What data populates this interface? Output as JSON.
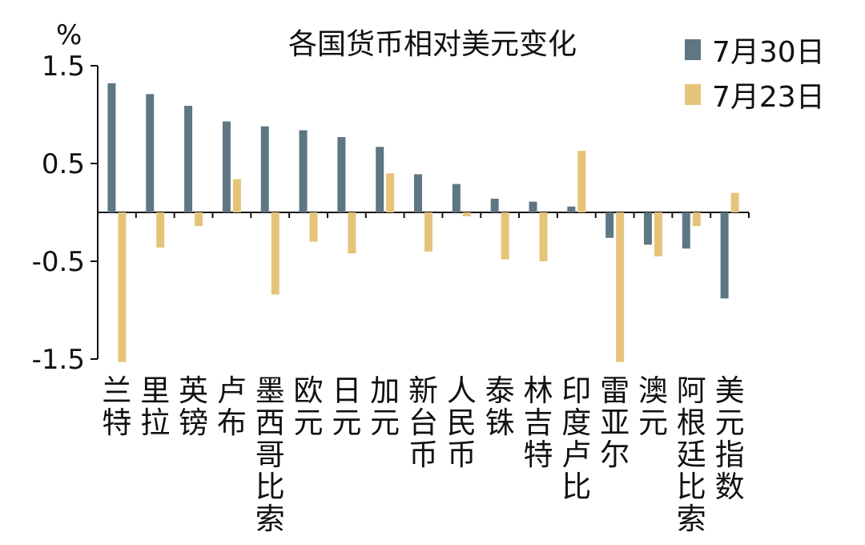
{
  "chart_data": {
    "type": "bar",
    "title": "各国货币相对美元变化",
    "ylabel": "%",
    "ylim": [
      -1.5,
      1.5
    ],
    "yticks": [
      1.5,
      0.5,
      -0.5,
      -1.5
    ],
    "ytick_labels": [
      "1.5",
      "0.5",
      "-0.5",
      "-1.5"
    ],
    "legend_position": "top-right",
    "categories": [
      "兰特",
      "里拉",
      "英镑",
      "卢布",
      "墨西哥比索",
      "欧元",
      "日元",
      "加元",
      "新台币",
      "人民币",
      "泰铢",
      "林吉特",
      "印度卢比",
      "雷亚尔",
      "澳元",
      "阿根廷比索",
      "美元指数"
    ],
    "series": [
      {
        "name": "7月30日",
        "color": "#5f7683",
        "values": [
          1.32,
          1.21,
          1.09,
          0.93,
          0.88,
          0.84,
          0.77,
          0.67,
          0.39,
          0.29,
          0.14,
          0.11,
          0.06,
          -0.26,
          -0.33,
          -0.37,
          -0.88
        ]
      },
      {
        "name": "7月23日",
        "color": "#e5c47a",
        "values": [
          -1.53,
          -0.36,
          -0.14,
          0.34,
          -0.84,
          -0.3,
          -0.42,
          0.4,
          -0.4,
          -0.04,
          -0.48,
          -0.5,
          0.63,
          -1.53,
          -0.45,
          -0.14,
          0.2
        ]
      }
    ]
  }
}
